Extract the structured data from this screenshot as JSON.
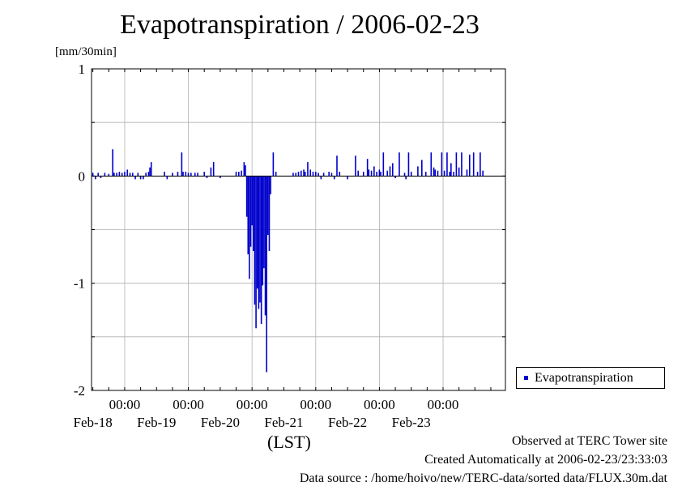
{
  "chart_data": {
    "type": "bar",
    "title": "Evapotranspiration / 2006-02-23",
    "ylabel": "[mm/30min]",
    "xlabel": "(LST)",
    "ylim": [
      -2,
      1
    ],
    "xlim": [
      "2006-02-17 11:30",
      "2006-02-23 23:30"
    ],
    "x_interval_minutes": 30,
    "y_ticks": [
      "1",
      "0",
      "-1",
      "-2"
    ],
    "x_ticks": [
      {
        "time": "00:00",
        "date": "Feb-18"
      },
      {
        "time": "00:00",
        "date": "Feb-19"
      },
      {
        "time": "00:00",
        "date": "Feb-20"
      },
      {
        "time": "00:00",
        "date": "Feb-21"
      },
      {
        "time": "00:00",
        "date": "Feb-22"
      },
      {
        "time": "00:00",
        "date": "Feb-23"
      }
    ],
    "grid": true,
    "legend_position": "right",
    "series": [
      {
        "name": "Evapotranspiration",
        "color": "#0000cc",
        "points": [
          [
            "2006-02-17 12:00",
            0.03
          ],
          [
            "2006-02-17 13:00",
            -0.03
          ],
          [
            "2006-02-17 14:00",
            0.03
          ],
          [
            "2006-02-17 15:00",
            -0.02
          ],
          [
            "2006-02-17 16:30",
            0.03
          ],
          [
            "2006-02-17 18:00",
            0.02
          ],
          [
            "2006-02-17 20:00",
            0.03
          ],
          [
            "2006-02-17 21:00",
            0.03
          ],
          [
            "2006-02-17 22:00",
            0.04
          ],
          [
            "2006-02-17 23:00",
            0.03
          ],
          [
            "2006-02-18 00:00",
            0.04
          ],
          [
            "2006-02-17 19:30",
            0.25
          ],
          [
            "2006-02-18 01:00",
            0.06
          ],
          [
            "2006-02-18 02:00",
            0.03
          ],
          [
            "2006-02-18 03:00",
            0.03
          ],
          [
            "2006-02-18 04:00",
            -0.03
          ],
          [
            "2006-02-18 05:00",
            0.03
          ],
          [
            "2006-02-18 06:00",
            -0.03
          ],
          [
            "2006-02-18 07:00",
            -0.03
          ],
          [
            "2006-02-18 08:00",
            0.03
          ],
          [
            "2006-02-18 09:00",
            0.04
          ],
          [
            "2006-02-18 09:30",
            0.08
          ],
          [
            "2006-02-18 10:00",
            0.13
          ],
          [
            "2006-02-18 15:00",
            0.04
          ],
          [
            "2006-02-18 16:00",
            -0.03
          ],
          [
            "2006-02-18 18:00",
            0.03
          ],
          [
            "2006-02-18 20:00",
            0.04
          ],
          [
            "2006-02-18 21:30",
            0.22
          ],
          [
            "2006-02-18 22:00",
            0.04
          ],
          [
            "2006-02-18 23:00",
            0.04
          ],
          [
            "2006-02-19 00:00",
            0.03
          ],
          [
            "2006-02-19 01:00",
            0.03
          ],
          [
            "2006-02-19 02:30",
            0.03
          ],
          [
            "2006-02-19 03:30",
            0.03
          ],
          [
            "2006-02-19 06:00",
            0.04
          ],
          [
            "2006-02-19 07:00",
            -0.02
          ],
          [
            "2006-02-19 08:30",
            0.08
          ],
          [
            "2006-02-19 09:30",
            0.13
          ],
          [
            "2006-02-19 12:00",
            -0.02
          ],
          [
            "2006-02-19 18:00",
            0.04
          ],
          [
            "2006-02-19 19:00",
            0.04
          ],
          [
            "2006-02-19 20:00",
            0.05
          ],
          [
            "2006-02-19 21:00",
            0.13
          ],
          [
            "2006-02-19 21:30",
            0.1
          ],
          [
            "2006-02-19 22:00",
            -0.38
          ],
          [
            "2006-02-19 22:30",
            -0.73
          ],
          [
            "2006-02-19 23:00",
            -0.96
          ],
          [
            "2006-02-19 23:30",
            -0.66
          ],
          [
            "2006-02-20 00:00",
            -0.46
          ],
          [
            "2006-02-20 00:30",
            -0.7
          ],
          [
            "2006-02-20 01:00",
            -1.2
          ],
          [
            "2006-02-20 01:30",
            -1.42
          ],
          [
            "2006-02-20 02:00",
            -1.05
          ],
          [
            "2006-02-20 02:30",
            -1.24
          ],
          [
            "2006-02-20 03:00",
            -1.18
          ],
          [
            "2006-02-20 03:30",
            -1.38
          ],
          [
            "2006-02-20 04:00",
            -1.02
          ],
          [
            "2006-02-20 04:30",
            -0.86
          ],
          [
            "2006-02-20 05:00",
            -1.3
          ],
          [
            "2006-02-20 05:30",
            -1.83
          ],
          [
            "2006-02-20 06:00",
            -0.55
          ],
          [
            "2006-02-20 06:30",
            -0.7
          ],
          [
            "2006-02-20 07:00",
            -0.17
          ],
          [
            "2006-02-20 08:00",
            0.22
          ],
          [
            "2006-02-20 09:00",
            0.04
          ],
          [
            "2006-02-20 15:30",
            0.03
          ],
          [
            "2006-02-20 16:30",
            0.03
          ],
          [
            "2006-02-20 17:30",
            0.04
          ],
          [
            "2006-02-20 18:30",
            0.05
          ],
          [
            "2006-02-20 19:30",
            0.06
          ],
          [
            "2006-02-20 20:00",
            0.04
          ],
          [
            "2006-02-20 21:00",
            0.13
          ],
          [
            "2006-02-20 22:00",
            0.06
          ],
          [
            "2006-02-20 23:00",
            0.04
          ],
          [
            "2006-02-21 00:00",
            0.04
          ],
          [
            "2006-02-21 01:00",
            0.03
          ],
          [
            "2006-02-21 02:00",
            -0.03
          ],
          [
            "2006-02-21 03:00",
            0.03
          ],
          [
            "2006-02-21 05:00",
            0.04
          ],
          [
            "2006-02-21 06:00",
            0.03
          ],
          [
            "2006-02-21 07:00",
            -0.03
          ],
          [
            "2006-02-21 08:00",
            0.19
          ],
          [
            "2006-02-21 09:00",
            0.04
          ],
          [
            "2006-02-21 12:00",
            -0.03
          ],
          [
            "2006-02-21 15:00",
            0.19
          ],
          [
            "2006-02-21 16:00",
            0.05
          ],
          [
            "2006-02-21 18:00",
            0.04
          ],
          [
            "2006-02-21 19:30",
            0.16
          ],
          [
            "2006-02-21 20:00",
            0.06
          ],
          [
            "2006-02-21 21:00",
            0.05
          ],
          [
            "2006-02-21 22:00",
            0.09
          ],
          [
            "2006-02-21 23:00",
            0.04
          ],
          [
            "2006-02-22 00:00",
            0.06
          ],
          [
            "2006-02-22 00:30",
            0.04
          ],
          [
            "2006-02-22 01:30",
            0.22
          ],
          [
            "2006-02-22 03:00",
            0.05
          ],
          [
            "2006-02-22 04:00",
            0.09
          ],
          [
            "2006-02-22 05:00",
            0.12
          ],
          [
            "2006-02-22 06:00",
            -0.02
          ],
          [
            "2006-02-22 07:30",
            0.22
          ],
          [
            "2006-02-22 09:30",
            0.03
          ],
          [
            "2006-02-22 10:00",
            -0.03
          ],
          [
            "2006-02-22 11:00",
            0.22
          ],
          [
            "2006-02-22 12:00",
            0.04
          ],
          [
            "2006-02-22 14:30",
            0.09
          ],
          [
            "2006-02-22 16:00",
            0.15
          ],
          [
            "2006-02-22 17:30",
            0.04
          ],
          [
            "2006-02-22 19:30",
            0.22
          ],
          [
            "2006-02-22 20:30",
            0.08
          ],
          [
            "2006-02-22 21:00",
            0.06
          ],
          [
            "2006-02-22 22:00",
            0.05
          ],
          [
            "2006-02-22 23:30",
            0.22
          ],
          [
            "2006-02-23 00:30",
            0.05
          ],
          [
            "2006-02-23 01:30",
            0.22
          ],
          [
            "2006-02-23 02:30",
            0.04
          ],
          [
            "2006-02-23 03:00",
            0.12
          ],
          [
            "2006-02-23 04:00",
            0.04
          ],
          [
            "2006-02-23 05:00",
            0.22
          ],
          [
            "2006-02-23 06:00",
            0.08
          ],
          [
            "2006-02-23 07:00",
            0.22
          ],
          [
            "2006-02-23 09:00",
            0.06
          ],
          [
            "2006-02-23 10:00",
            0.2
          ],
          [
            "2006-02-23 11:30",
            0.22
          ],
          [
            "2006-02-23 13:00",
            0.04
          ],
          [
            "2006-02-23 14:00",
            0.22
          ],
          [
            "2006-02-23 15:00",
            0.05
          ]
        ]
      }
    ]
  },
  "footer": {
    "observed": "Observed at TERC Tower site",
    "created": "Created Automatically at 2006-02-23/23:33:03",
    "source": "Data source : /home/hoivo/new/TERC-data/sorted  data/FLUX.30m.dat"
  }
}
